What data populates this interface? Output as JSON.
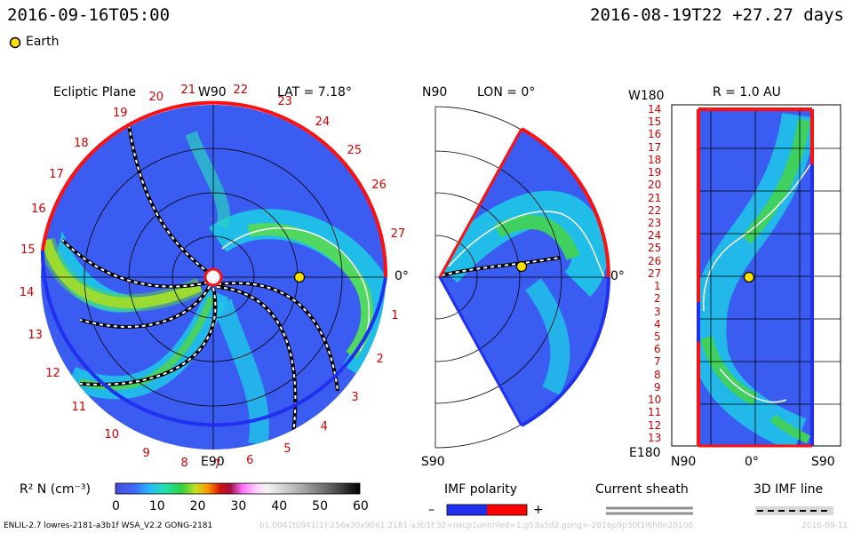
{
  "header": {
    "left_time": "2016-09-16T05:00",
    "right_time": "2016-08-19T22 +27.27 days",
    "legend_earth": "Earth"
  },
  "panels": {
    "ecliptic": {
      "title": "Ecliptic Plane",
      "top_label": "W90",
      "bottom_label": "E90",
      "right_label": "0°",
      "lat_label": "LAT = 7.18°",
      "ring_labels": [
        "1",
        "2",
        "3",
        "4",
        "5",
        "6",
        "7",
        "8",
        "9",
        "10",
        "11",
        "12",
        "13",
        "14",
        "15",
        "16",
        "17",
        "18",
        "19",
        "20",
        "21",
        "22",
        "23",
        "24",
        "25",
        "26",
        "27"
      ]
    },
    "meridional": {
      "top_label": "N90",
      "bottom_label": "S90",
      "right_label": "0°",
      "lon_label": "LON = 0°"
    },
    "sphere": {
      "title": "R = 1.0 AU",
      "top_left": "W180",
      "bottom_left": "E180",
      "bottom_n": "N90",
      "bottom_mid": "0°",
      "bottom_s": "S90",
      "rows": [
        "14",
        "15",
        "16",
        "17",
        "18",
        "19",
        "20",
        "21",
        "22",
        "23",
        "24",
        "25",
        "26",
        "27",
        "1",
        "2",
        "3",
        "4",
        "5",
        "6",
        "7",
        "8",
        "9",
        "10",
        "11",
        "12",
        "13"
      ]
    }
  },
  "colorbar": {
    "label": "R² N (cm⁻³)",
    "ticks": [
      "0",
      "10",
      "20",
      "30",
      "40",
      "50",
      "60"
    ]
  },
  "legend": {
    "imf_title": "IMF polarity",
    "imf_minus": "–",
    "imf_plus": "+",
    "sheath_title": "Current sheath",
    "imf3d_title": "3D IMF line"
  },
  "footer": {
    "model": "ENLIL-2.7 lowres-2181-a3b1f WSA_V2.2 GONG-2181",
    "faded": "b1.0041t0941(1):256x30x90x1:2181-a3b1f:32=nscp1unnnled=1:g53a5d2.gong=-2016p9p30f1l6h0n20100",
    "faded_right": "2016-09-11"
  },
  "colors": {
    "negative": "#2030ee",
    "positive": "#ff0000",
    "background": "#3a5cf0",
    "earth": "#ffe000"
  }
}
